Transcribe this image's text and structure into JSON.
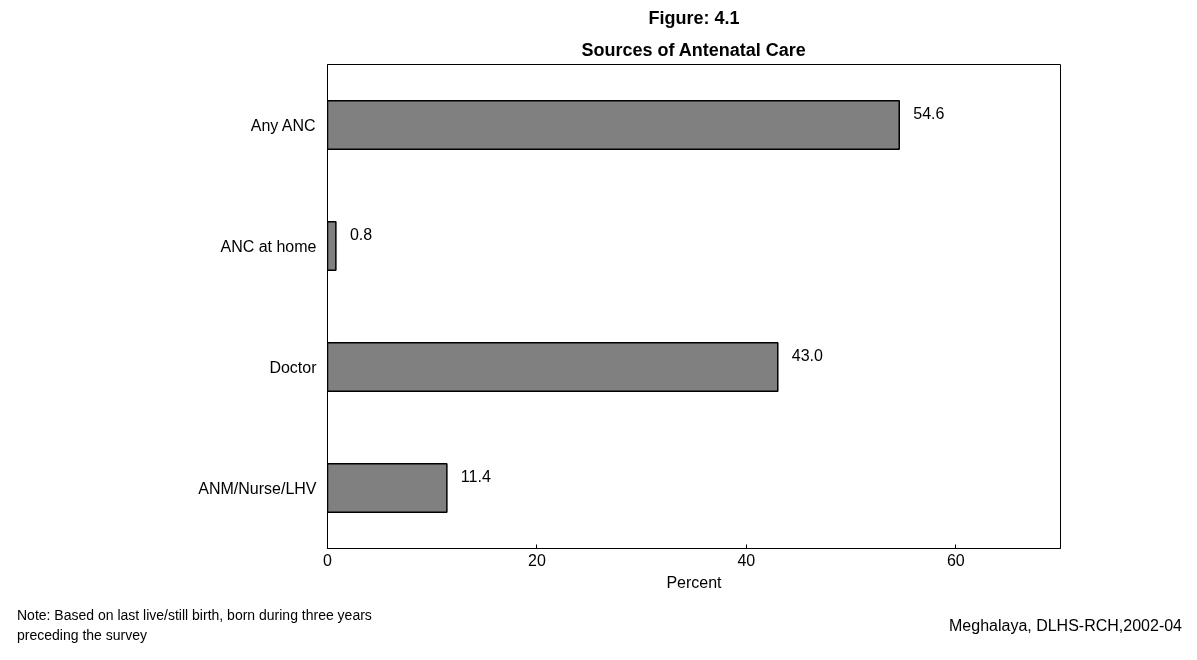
{
  "chart_data": {
    "type": "bar",
    "orientation": "horizontal",
    "title": "Figure: 4.1",
    "subtitle": "Sources of Antenatal Care",
    "categories": [
      "Any ANC",
      "ANC at home",
      "Doctor",
      "ANM/Nurse/LHV"
    ],
    "values": [
      54.6,
      0.8,
      43.0,
      11.4
    ],
    "value_labels": [
      "54.6",
      "0.8",
      "43.0",
      "11.4"
    ],
    "color": "#808080",
    "xlabel": "Percent",
    "xlim": [
      0,
      70
    ],
    "xticks": [
      0,
      20,
      40,
      60
    ],
    "grid": false,
    "annotations": [
      "Note: Based on last live/still birth, born during three years preceding the survey",
      "Meghalaya, DLHS-RCH,2002-04"
    ]
  }
}
